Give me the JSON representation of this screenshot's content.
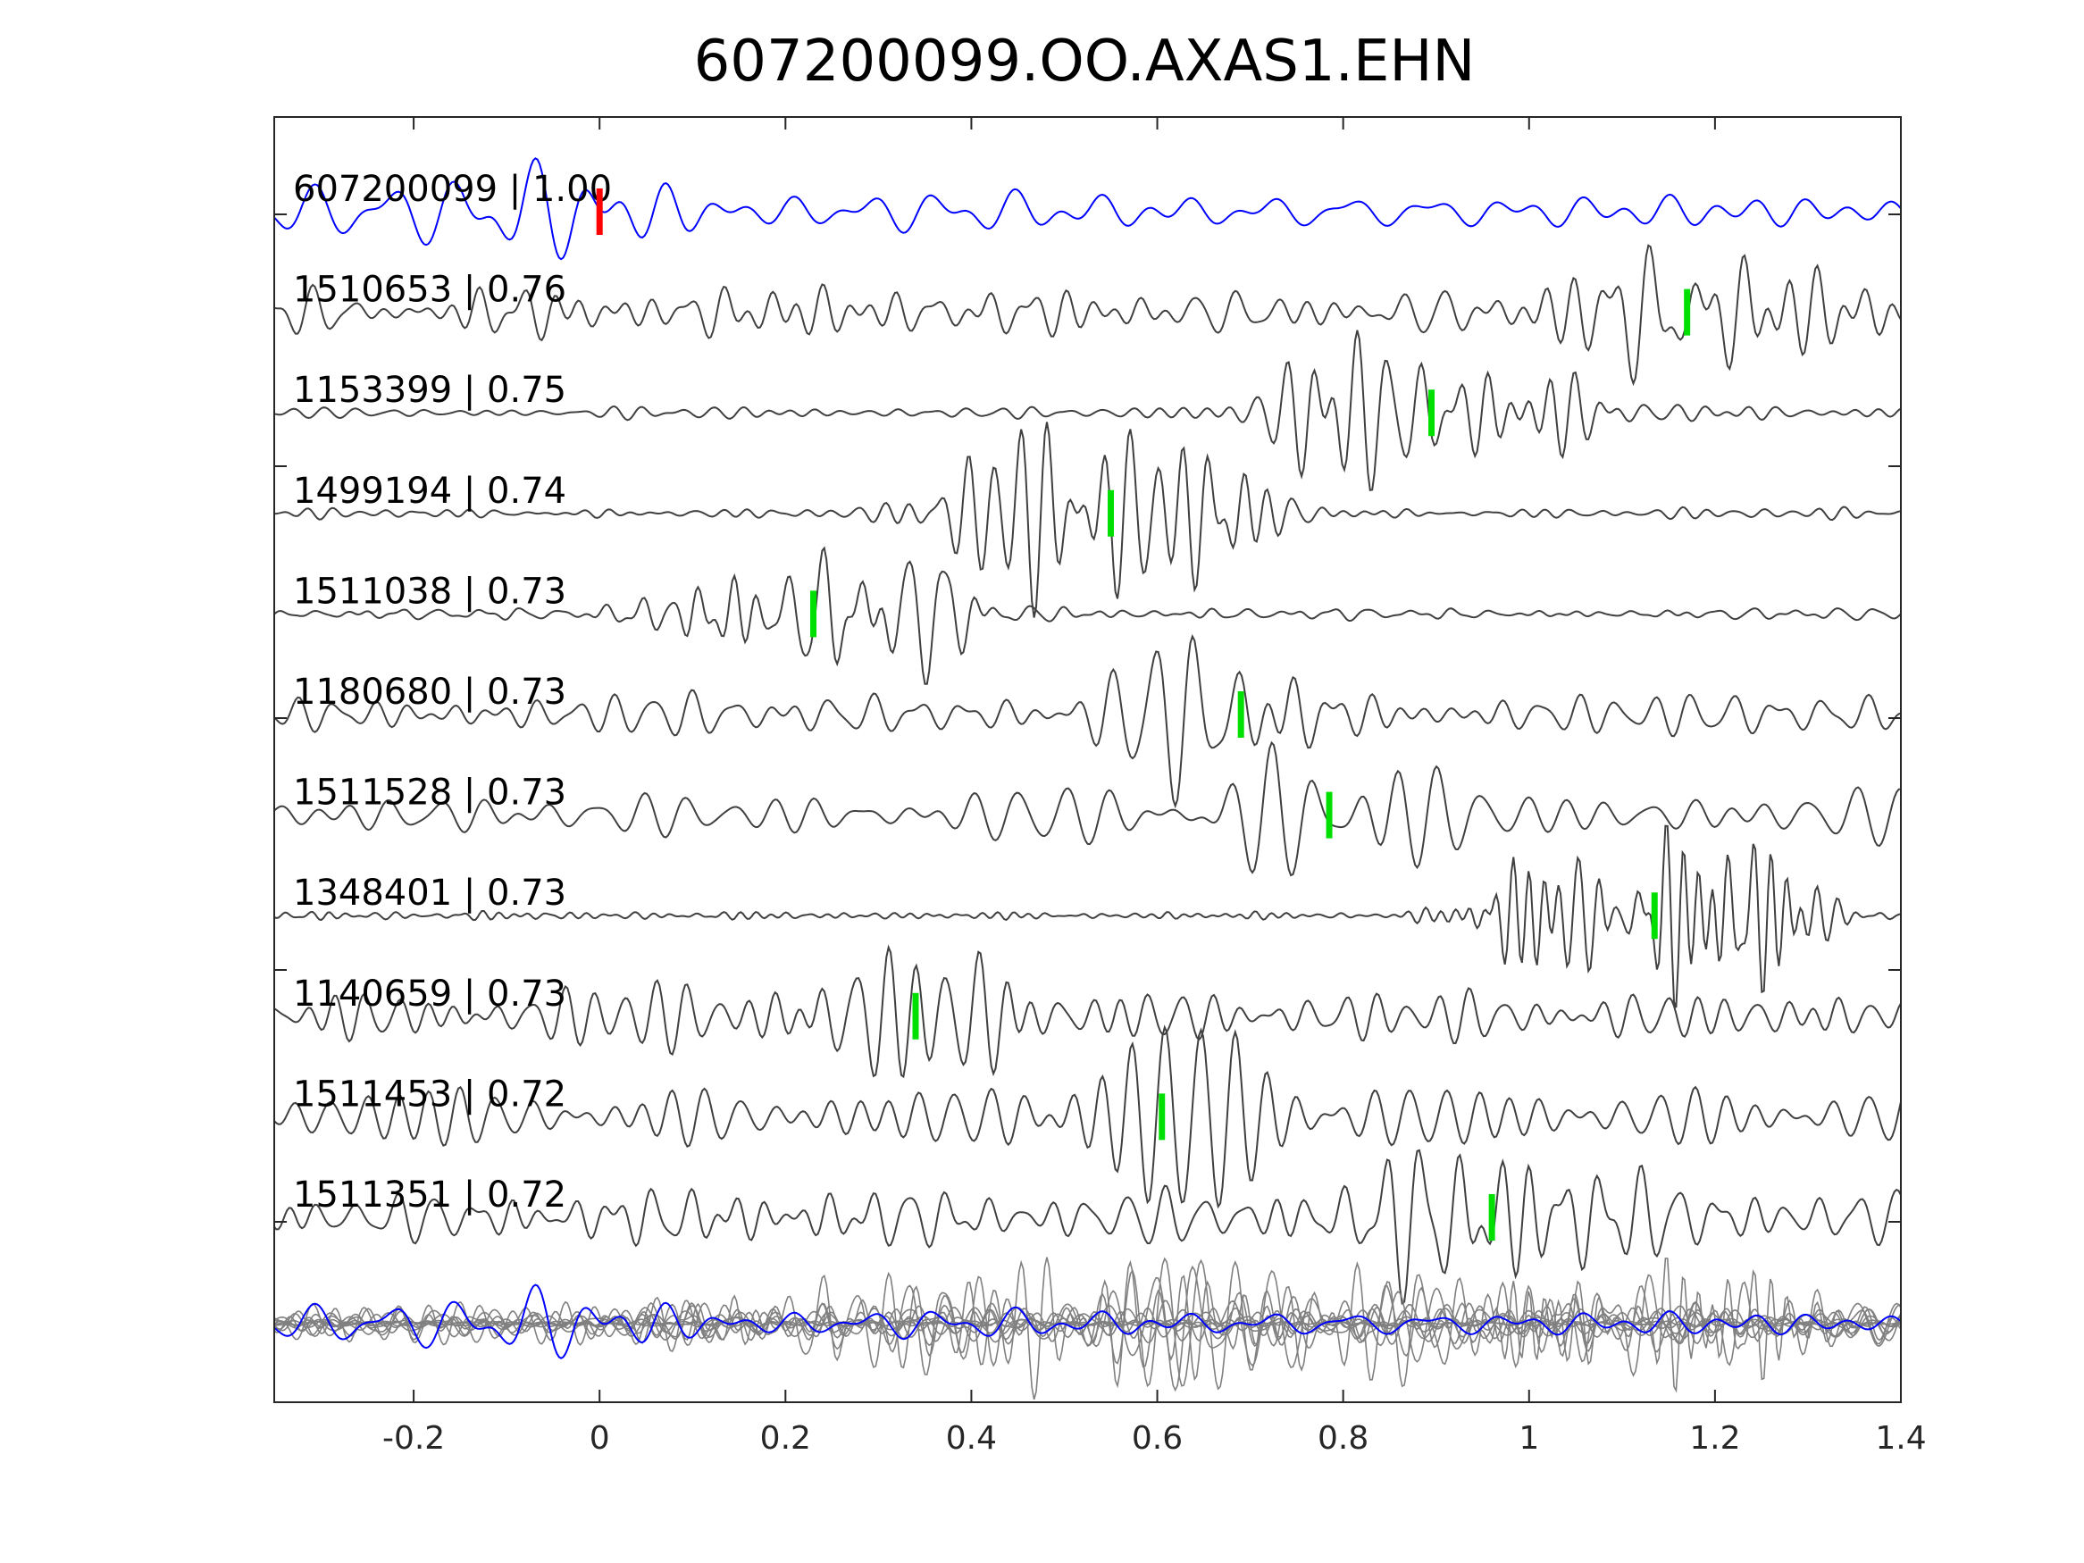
{
  "chart_data": {
    "type": "line",
    "title": "607200099.OO.AXAS1.EHN",
    "xlabel": "",
    "ylabel": "",
    "xlim": [
      -0.35,
      1.4
    ],
    "xticks": [
      -0.2,
      0,
      0.2,
      0.4,
      0.6,
      0.8,
      1,
      1.2,
      1.4
    ],
    "xtick_labels": [
      "-0.2",
      "0",
      "0.2",
      "0.4",
      "0.6",
      "0.8",
      "1",
      "1.2",
      "1.4"
    ],
    "grid": false,
    "colors": {
      "template": "#0000ff",
      "trace": "#404040",
      "stack": "#808080",
      "reference_pick": "#ff0000",
      "pick": "#00e000",
      "axes": "#262626"
    },
    "traces": [
      {
        "id": "607200099",
        "label": "607200099 | 1.00",
        "cc": 1.0,
        "pick": 0.0,
        "pick_color": "red",
        "style": {
          "freq": 16,
          "amp": 0.28,
          "seed": 1
        }
      },
      {
        "id": "1510653",
        "label": "1510653 | 0.76",
        "cc": 0.76,
        "pick": 1.17,
        "pick_color": "green",
        "style": {
          "freq": 26,
          "amp": 0.34,
          "seed": 2
        }
      },
      {
        "id": "1153399",
        "label": "1153399 | 0.75",
        "cc": 0.75,
        "pick": 0.895,
        "pick_color": "green",
        "style": {
          "freq": 30,
          "amp": 0.08,
          "seed": 3
        }
      },
      {
        "id": "1499194",
        "label": "1499194 | 0.74",
        "cc": 0.74,
        "pick": 0.55,
        "pick_color": "green",
        "style": {
          "freq": 38,
          "amp": 0.06,
          "seed": 4
        }
      },
      {
        "id": "1511038",
        "label": "1511038 | 0.73",
        "cc": 0.73,
        "pick": 0.23,
        "pick_color": "green",
        "style": {
          "freq": 34,
          "amp": 0.1,
          "seed": 5
        }
      },
      {
        "id": "1180680",
        "label": "1180680 | 0.73",
        "cc": 0.73,
        "pick": 0.69,
        "pick_color": "green",
        "style": {
          "freq": 28,
          "amp": 0.3,
          "seed": 6
        }
      },
      {
        "id": "1511528",
        "label": "1511528 | 0.73",
        "cc": 0.73,
        "pick": 0.785,
        "pick_color": "green",
        "style": {
          "freq": 20,
          "amp": 0.28,
          "seed": 7
        }
      },
      {
        "id": "1348401",
        "label": "1348401 | 0.73",
        "cc": 0.73,
        "pick": 1.135,
        "pick_color": "green",
        "style": {
          "freq": 44,
          "amp": 0.05,
          "seed": 8
        }
      },
      {
        "id": "1140659",
        "label": "1140659 | 0.73",
        "cc": 0.73,
        "pick": 0.34,
        "pick_color": "green",
        "style": {
          "freq": 30,
          "amp": 0.35,
          "seed": 9
        }
      },
      {
        "id": "1511453",
        "label": "1511453 | 0.72",
        "cc": 0.72,
        "pick": 0.605,
        "pick_color": "green",
        "style": {
          "freq": 26,
          "amp": 0.38,
          "seed": 10
        }
      },
      {
        "id": "1511351",
        "label": "1511351 | 0.72",
        "cc": 0.72,
        "pick": 0.96,
        "pick_color": "green",
        "style": {
          "freq": 32,
          "amp": 0.38,
          "seed": 11
        }
      }
    ],
    "stack_row": true
  }
}
